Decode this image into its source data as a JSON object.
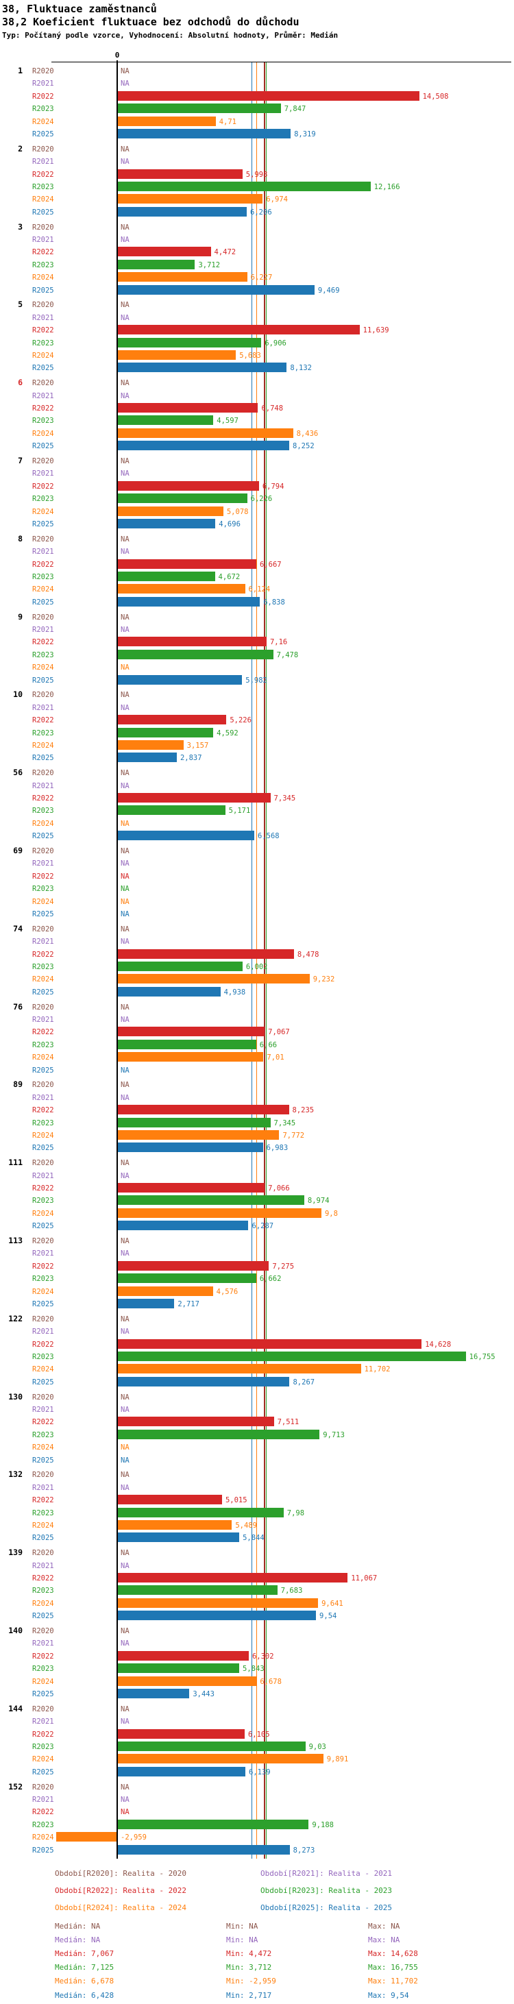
{
  "title_line1": "38, Fluktuace zaměstnanců",
  "title_line2": "38,2 Koeficient fluktuace bez odchodů do důchodu",
  "subtitle": "Typ: Počítaný podle vzorce, Vyhodnocení: Absolutní hodnoty, Průměr: Medián",
  "stats_labels": {
    "median": "Medián",
    "min": "Min",
    "max": "Max"
  },
  "chart_data": {
    "type": "bar",
    "orientation": "horizontal",
    "title": "38,2 Koeficient fluktuace bez odchodů do důchodu",
    "legend_position": "bottom",
    "grid": false,
    "na_label": "NA",
    "axis": {
      "zero_label": "0"
    },
    "reference_lines_note": "vertical lines mark the median of each year series",
    "categories": [
      "1",
      "2",
      "3",
      "5",
      "6",
      "7",
      "8",
      "9",
      "10",
      "56",
      "69",
      "74",
      "76",
      "89",
      "111",
      "113",
      "122",
      "130",
      "132",
      "139",
      "140",
      "144",
      "152"
    ],
    "group_label_colors": {
      "6": "#d62728"
    },
    "series": [
      {
        "name": "R2020",
        "label": "R2020",
        "color": "#8c564b",
        "legend_label": "Období[R2020]: Realita - 2020",
        "median": null,
        "min": null,
        "max": null,
        "values": [
          null,
          null,
          null,
          null,
          null,
          null,
          null,
          null,
          null,
          null,
          null,
          null,
          null,
          null,
          null,
          null,
          null,
          null,
          null,
          null,
          null,
          null,
          null
        ]
      },
      {
        "name": "R2021",
        "label": "R2021",
        "color": "#9467bd",
        "legend_label": "Období[R2021]: Realita - 2021",
        "median": null,
        "min": null,
        "max": null,
        "values": [
          null,
          null,
          null,
          null,
          null,
          null,
          null,
          null,
          null,
          null,
          null,
          null,
          null,
          null,
          null,
          null,
          null,
          null,
          null,
          null,
          null,
          null,
          null
        ]
      },
      {
        "name": "R2022",
        "label": "R2022",
        "color": "#d62728",
        "line_color": "#a12d23",
        "legend_label": "Období[R2022]: Realita - 2022",
        "median": 7.067,
        "min": 4.472,
        "max": 14.628,
        "values": [
          14.508,
          5.998,
          4.472,
          11.639,
          6.748,
          6.794,
          6.667,
          7.16,
          5.226,
          7.345,
          null,
          8.478,
          7.067,
          8.235,
          7.066,
          7.275,
          14.628,
          7.511,
          5.015,
          11.067,
          6.302,
          6.105,
          null
        ]
      },
      {
        "name": "R2023",
        "label": "R2023",
        "color": "#2ca02c",
        "line_color": "#2ca02c",
        "legend_label": "Období[R2023]: Realita - 2023",
        "median": 7.125,
        "min": 3.712,
        "max": 16.755,
        "values": [
          7.847,
          12.166,
          3.712,
          6.906,
          4.597,
          6.226,
          4.672,
          7.478,
          4.592,
          5.171,
          null,
          6.002,
          6.66,
          7.345,
          8.974,
          6.662,
          16.755,
          9.713,
          7.98,
          7.683,
          5.843,
          9.03,
          9.188
        ]
      },
      {
        "name": "R2024",
        "label": "R2024",
        "color": "#ff7f0e",
        "line_color": "#ff7f0e",
        "legend_label": "Období[R2024]: Realita - 2024",
        "median": 6.678,
        "min": -2.959,
        "max": 11.702,
        "values": [
          4.71,
          6.974,
          6.227,
          5.683,
          8.436,
          5.078,
          6.124,
          null,
          3.157,
          null,
          null,
          9.232,
          7.01,
          7.772,
          9.8,
          4.576,
          11.702,
          null,
          5.489,
          9.641,
          6.678,
          9.891,
          -2.959
        ]
      },
      {
        "name": "R2025",
        "label": "R2025",
        "color": "#1f77b4",
        "line_color": "#1f77b4",
        "legend_label": "Období[R2025]: Realita - 2025",
        "median": 6.428,
        "min": 2.717,
        "max": 9.54,
        "values": [
          8.319,
          6.206,
          9.469,
          8.132,
          8.252,
          4.696,
          6.838,
          5.982,
          2.837,
          6.568,
          null,
          4.938,
          null,
          6.983,
          6.287,
          2.717,
          8.267,
          null,
          5.844,
          9.54,
          3.443,
          6.139,
          8.273
        ]
      }
    ]
  }
}
